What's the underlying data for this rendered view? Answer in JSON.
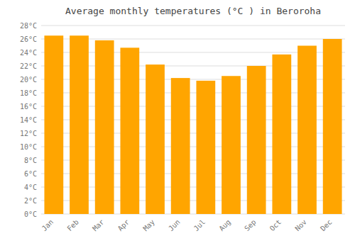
{
  "chart_data": {
    "type": "bar",
    "title": "Average monthly temperatures (°C ) in Beroroha",
    "categories": [
      "Jan",
      "Feb",
      "Mar",
      "Apr",
      "May",
      "Jun",
      "Jul",
      "Aug",
      "Sep",
      "Oct",
      "Nov",
      "Dec"
    ],
    "values": [
      26.5,
      26.5,
      25.8,
      24.7,
      22.2,
      20.2,
      19.8,
      20.5,
      22.0,
      23.7,
      25.0,
      26.0
    ],
    "color": "#FFA500",
    "ylim": [
      0,
      28
    ],
    "yticks": [
      {
        "value": 0,
        "label": "0°C"
      },
      {
        "value": 2,
        "label": "2°C"
      },
      {
        "value": 4,
        "label": "4°C"
      },
      {
        "value": 6,
        "label": "6°C"
      },
      {
        "value": 8,
        "label": "8°C"
      },
      {
        "value": 10,
        "label": "10°C"
      },
      {
        "value": 12,
        "label": "12°C"
      },
      {
        "value": 14,
        "label": "14°C"
      },
      {
        "value": 16,
        "label": "16°C"
      },
      {
        "value": 18,
        "label": "18°C"
      },
      {
        "value": 20,
        "label": "20°C"
      },
      {
        "value": 22,
        "label": "22°C"
      },
      {
        "value": 24,
        "label": "24°C"
      },
      {
        "value": 26,
        "label": "26°C"
      },
      {
        "value": 28,
        "label": "28°C"
      }
    ],
    "grid": true
  }
}
